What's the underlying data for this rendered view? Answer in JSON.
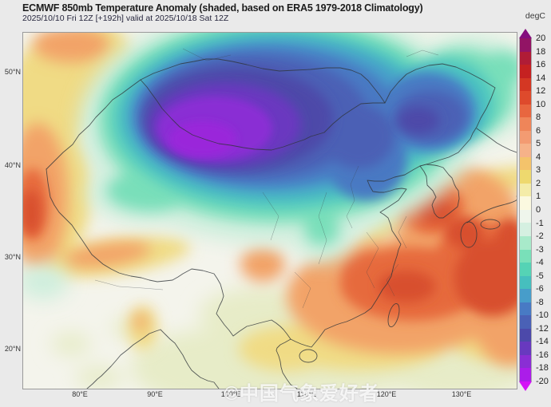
{
  "header": {
    "title": "ECMWF 850mb Temperature Anomaly (shaded, based on ERA5 1979-2018 Climatology)",
    "subtitle": "2025/10/10 Fri 12Z [+192h] valid at 2025/10/18 Sat 12Z",
    "units_label": "degC"
  },
  "map": {
    "lat_labels": [
      "50°N",
      "40°N",
      "30°N",
      "20°N"
    ],
    "lon_labels": [
      "80°E",
      "90°E",
      "100°E",
      "110°E",
      "120°E",
      "130°E"
    ],
    "watermark": "©中国气象爱好者"
  },
  "colorbar": {
    "ticks": [
      "20",
      "18",
      "16",
      "14",
      "12",
      "10",
      "8",
      "6",
      "5",
      "4",
      "3",
      "2",
      "1",
      "0",
      "-1",
      "-2",
      "-3",
      "-4",
      "-5",
      "-6",
      "-8",
      "-10",
      "-12",
      "-14",
      "-16",
      "-18",
      "-20"
    ],
    "segment_colors": [
      "#921465",
      "#b01c36",
      "#c52121",
      "#d43723",
      "#de4a2c",
      "#e8663f",
      "#ef8559",
      "#f39b72",
      "#f6b289",
      "#f4c36b",
      "#eed96e",
      "#f4eca8",
      "#fbf9e0",
      "#eff6ec",
      "#d5f0e1",
      "#a8eaca",
      "#79e0b9",
      "#55d3b5",
      "#46bfbe",
      "#479dca",
      "#487ac4",
      "#4a61b6",
      "#4c49aa",
      "#6839bf",
      "#8a2ed4",
      "#ab1de9"
    ],
    "arrow_top_color": "#850d7e",
    "arrow_bottom_color": "#d414f6"
  }
}
